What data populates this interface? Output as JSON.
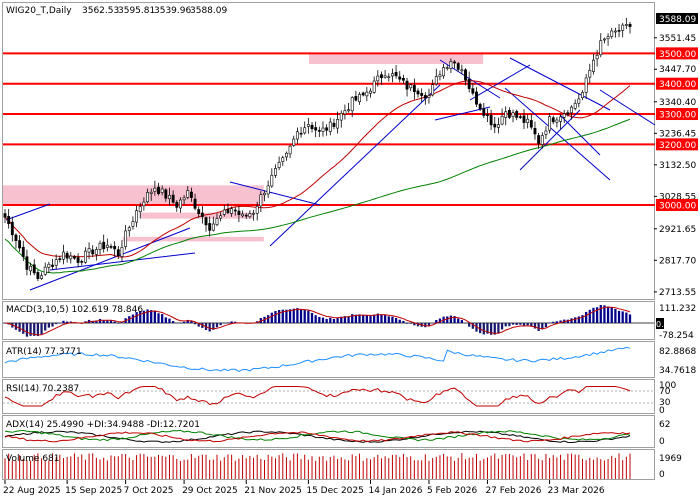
{
  "chart_data": {
    "type": "candlestick",
    "header": {
      "symbol": "WIG20_T,Daily",
      "ohlc": [
        "3562.53",
        "3595.81",
        "3539.96",
        "3588.09"
      ]
    },
    "last_price_label": "3588.09",
    "price_axis": {
      "ylim": [
        2700,
        3610
      ],
      "ticks": [
        "3551.45",
        "3447.70",
        "3340.40",
        "3236.45",
        "3132.50",
        "3028.55",
        "2921.65",
        "2817.70",
        "2713.55"
      ]
    },
    "levels": [
      {
        "label": "3500.00",
        "value": 3500
      },
      {
        "label": "3400.00",
        "value": 3400
      },
      {
        "label": "3300.00",
        "value": 3300
      },
      {
        "label": "3200.00",
        "value": 3200
      },
      {
        "label": "3000.00",
        "value": 3000
      }
    ],
    "zones": [
      {
        "x_start": 0,
        "x_end": 70,
        "y_low": 3000,
        "y_high": 3065
      },
      {
        "x_start": 38,
        "x_end": 67,
        "y_low": 2955,
        "y_high": 2975
      },
      {
        "x_start": 33,
        "x_end": 70,
        "y_low": 2880,
        "y_high": 2895
      },
      {
        "x_start": 84,
        "x_end": 130,
        "y_low": 3465,
        "y_high": 3500
      }
    ],
    "date_labels": [
      {
        "label": "22 Aug 2025",
        "index": 0
      },
      {
        "label": "15 Sep 2025",
        "index": 17
      },
      {
        "label": "7 Oct 2025",
        "index": 33
      },
      {
        "label": "29 Oct 2025",
        "index": 49
      },
      {
        "label": "21 Nov 2025",
        "index": 66
      },
      {
        "label": "15 Dec 2025",
        "index": 83
      },
      {
        "label": "14 Jan 2026",
        "index": 100
      },
      {
        "label": "5 Feb 2026",
        "index": 116
      },
      {
        "label": "27 Feb 2026",
        "index": 132
      },
      {
        "label": "23 Mar 2026",
        "index": 149
      }
    ],
    "bar_count": 172,
    "anchors": [
      [
        0,
        2960
      ],
      [
        3,
        2890
      ],
      [
        6,
        2800
      ],
      [
        9,
        2760
      ],
      [
        12,
        2800
      ],
      [
        16,
        2840
      ],
      [
        20,
        2820
      ],
      [
        24,
        2850
      ],
      [
        28,
        2870
      ],
      [
        31,
        2840
      ],
      [
        33,
        2900
      ],
      [
        36,
        2980
      ],
      [
        38,
        3020
      ],
      [
        41,
        3060
      ],
      [
        44,
        3030
      ],
      [
        47,
        3000
      ],
      [
        50,
        3040
      ],
      [
        53,
        2980
      ],
      [
        56,
        2930
      ],
      [
        59,
        2960
      ],
      [
        62,
        2990
      ],
      [
        65,
        2960
      ],
      [
        68,
        2980
      ],
      [
        71,
        3050
      ],
      [
        74,
        3110
      ],
      [
        77,
        3160
      ],
      [
        80,
        3240
      ],
      [
        83,
        3270
      ],
      [
        86,
        3240
      ],
      [
        89,
        3260
      ],
      [
        92,
        3300
      ],
      [
        95,
        3340
      ],
      [
        98,
        3360
      ],
      [
        101,
        3400
      ],
      [
        104,
        3440
      ],
      [
        107,
        3420
      ],
      [
        110,
        3390
      ],
      [
        113,
        3380
      ],
      [
        116,
        3360
      ],
      [
        119,
        3440
      ],
      [
        122,
        3480
      ],
      [
        125,
        3450
      ],
      [
        128,
        3360
      ],
      [
        131,
        3310
      ],
      [
        134,
        3260
      ],
      [
        137,
        3310
      ],
      [
        140,
        3290
      ],
      [
        143,
        3270
      ],
      [
        146,
        3210
      ],
      [
        149,
        3280
      ],
      [
        152,
        3300
      ],
      [
        155,
        3320
      ],
      [
        158,
        3370
      ],
      [
        161,
        3480
      ],
      [
        163,
        3530
      ],
      [
        165,
        3555
      ],
      [
        168,
        3575
      ],
      [
        171,
        3588
      ]
    ],
    "indicators": {
      "macd": {
        "title": "MACD(3,10,5) 102.619 78.846",
        "ticks": [
          "111.232",
          "0.00",
          "-78.254"
        ]
      },
      "atr": {
        "title": "ATR(14) 77.3771",
        "ticks": [
          "82.8868",
          "34.7618"
        ]
      },
      "rsi": {
        "title": "RSI(14) 70.2387",
        "ticks": [
          "100",
          "70",
          "30",
          "0"
        ]
      },
      "adx": {
        "title": "ADX(14) 25.4990 +DI:34.9488 -DI:12.7201",
        "ticks": [
          "62",
          "0"
        ]
      },
      "volume": {
        "title": "Volume 681",
        "ticks": [
          "1969",
          "0"
        ]
      }
    }
  },
  "colors": {
    "bull": "#ffffff",
    "bear": "#000000",
    "level": "#ff0000",
    "zone": "#f7b6c8",
    "trendline": "#0000cd",
    "ma_fast": "#c00000",
    "ma_slow": "#008000",
    "macd_hist": "#00008b",
    "macd_hist_neg": "#191970",
    "atr_line": "#1e90ff",
    "volume_bar": "#c00000"
  }
}
